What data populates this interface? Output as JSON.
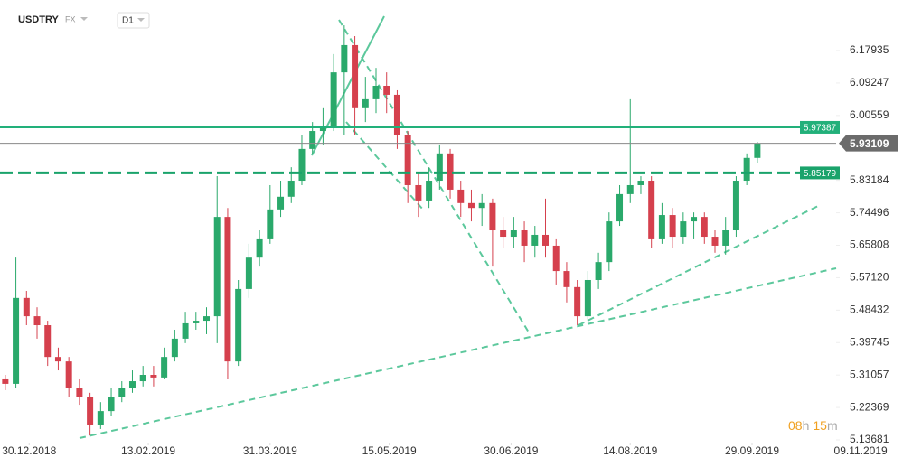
{
  "chart_data": {
    "type": "candlestick",
    "symbol": "USDTRY",
    "market": "FX",
    "timeframe": "D1",
    "up_color": "#2aa96b",
    "down_color": "#d5404d",
    "x": [
      "2018-12-21",
      "2018-12-25",
      "2018-12-29",
      "2019-01-02",
      "2019-01-06",
      "2019-01-10",
      "2019-01-14",
      "2019-01-18",
      "2019-01-22",
      "2019-01-26",
      "2019-01-30",
      "2019-02-03",
      "2019-02-07",
      "2019-02-11",
      "2019-02-15",
      "2019-02-19",
      "2019-02-23",
      "2019-02-27",
      "2019-03-03",
      "2019-03-07",
      "2019-03-11",
      "2019-03-15",
      "2019-03-19",
      "2019-03-23",
      "2019-03-27",
      "2019-03-31",
      "2019-04-04",
      "2019-04-08",
      "2019-04-12",
      "2019-04-16",
      "2019-04-20",
      "2019-04-24",
      "2019-04-28",
      "2019-05-02",
      "2019-05-06",
      "2019-05-10",
      "2019-05-14",
      "2019-05-18",
      "2019-05-22",
      "2019-05-26",
      "2019-05-30",
      "2019-06-03",
      "2019-06-07",
      "2019-06-11",
      "2019-06-15",
      "2019-06-19",
      "2019-06-23",
      "2019-06-27",
      "2019-07-01",
      "2019-07-05",
      "2019-07-09",
      "2019-07-13",
      "2019-07-17",
      "2019-07-21",
      "2019-07-25",
      "2019-07-29",
      "2019-08-02",
      "2019-08-06",
      "2019-08-10",
      "2019-08-14",
      "2019-08-18",
      "2019-08-22",
      "2019-08-26",
      "2019-08-30",
      "2019-09-03",
      "2019-09-07",
      "2019-09-11",
      "2019-09-15",
      "2019-09-19",
      "2019-09-23",
      "2019-09-27",
      "2019-10-01"
    ],
    "open": [
      5.299,
      5.287,
      5.517,
      5.468,
      5.444,
      5.359,
      5.347,
      5.275,
      5.251,
      5.178,
      5.214,
      5.251,
      5.275,
      5.294,
      5.311,
      5.304,
      5.359,
      5.408,
      5.449,
      5.456,
      5.468,
      5.734,
      5.347,
      5.541,
      5.625,
      5.674,
      5.754,
      5.788,
      5.831,
      5.916,
      5.964,
      5.976,
      6.121,
      6.194,
      6.025,
      6.049,
      6.085,
      6.061,
      5.952,
      5.819,
      5.778,
      5.831,
      5.904,
      5.807,
      5.771,
      5.758,
      5.771,
      5.698,
      5.681,
      5.698,
      5.657,
      5.686,
      5.657,
      5.589,
      5.546,
      5.468,
      5.565,
      5.613,
      5.722,
      5.795,
      5.819,
      5.831,
      5.674,
      5.739,
      5.681,
      5.722,
      5.734,
      5.681,
      5.657,
      5.698,
      5.831,
      5.892
    ],
    "high": [
      5.311,
      5.625,
      5.536,
      5.492,
      5.456,
      5.384,
      5.359,
      5.299,
      5.263,
      5.238,
      5.275,
      5.294,
      5.323,
      5.335,
      5.335,
      5.384,
      5.432,
      5.48,
      5.48,
      5.492,
      5.843,
      5.758,
      5.565,
      5.662,
      5.698,
      5.819,
      5.831,
      5.867,
      5.952,
      5.988,
      6.025,
      6.17,
      6.247,
      6.218,
      6.109,
      6.133,
      6.121,
      6.073,
      5.964,
      5.855,
      5.867,
      5.928,
      5.916,
      5.831,
      5.807,
      5.795,
      5.783,
      5.734,
      5.734,
      5.722,
      5.71,
      5.783,
      5.674,
      5.613,
      5.565,
      5.589,
      5.638,
      5.746,
      5.819,
      6.049,
      5.843,
      5.843,
      5.771,
      5.758,
      5.746,
      5.746,
      5.746,
      5.698,
      5.734,
      5.843,
      5.904,
      5.935
    ],
    "low": [
      5.27,
      5.275,
      5.444,
      5.408,
      5.335,
      5.323,
      5.251,
      5.231,
      5.149,
      5.166,
      5.202,
      5.238,
      5.263,
      5.28,
      5.28,
      5.299,
      5.347,
      5.396,
      5.432,
      5.42,
      5.396,
      5.299,
      5.335,
      5.517,
      5.601,
      5.662,
      5.734,
      5.771,
      5.819,
      5.904,
      5.928,
      5.964,
      5.952,
      5.952,
      5.988,
      6.012,
      6.012,
      5.916,
      5.771,
      5.734,
      5.758,
      5.807,
      5.783,
      5.734,
      5.722,
      5.71,
      5.601,
      5.65,
      5.65,
      5.613,
      5.625,
      5.625,
      5.553,
      5.505,
      5.444,
      5.456,
      5.541,
      5.589,
      5.71,
      5.771,
      5.795,
      5.65,
      5.662,
      5.65,
      5.662,
      5.674,
      5.662,
      5.638,
      5.633,
      5.681,
      5.819,
      5.879
    ],
    "close": [
      5.287,
      5.517,
      5.468,
      5.444,
      5.359,
      5.347,
      5.275,
      5.251,
      5.178,
      5.214,
      5.251,
      5.275,
      5.294,
      5.311,
      5.304,
      5.359,
      5.408,
      5.449,
      5.456,
      5.468,
      5.734,
      5.347,
      5.541,
      5.625,
      5.674,
      5.754,
      5.788,
      5.831,
      5.916,
      5.964,
      5.976,
      6.121,
      6.194,
      6.025,
      6.049,
      6.085,
      6.061,
      5.952,
      5.819,
      5.778,
      5.831,
      5.904,
      5.807,
      5.771,
      5.758,
      5.771,
      5.698,
      5.681,
      5.698,
      5.657,
      5.686,
      5.657,
      5.589,
      5.546,
      5.468,
      5.565,
      5.613,
      5.722,
      5.795,
      5.819,
      5.831,
      5.674,
      5.739,
      5.681,
      5.722,
      5.734,
      5.681,
      5.657,
      5.698,
      5.831,
      5.892,
      5.93109
    ],
    "xlim": [
      "2018-12-19",
      "2019-11-25"
    ],
    "xticks": [
      {
        "value": "2018-12-30",
        "label": "30.12.2018"
      },
      {
        "value": "2019-02-13",
        "label": "13.02.2019"
      },
      {
        "value": "2019-03-31",
        "label": "31.03.2019"
      },
      {
        "value": "2019-05-15",
        "label": "15.05.2019"
      },
      {
        "value": "2019-06-30",
        "label": "30.06.2019"
      },
      {
        "value": "2019-08-14",
        "label": "14.08.2019"
      },
      {
        "value": "2019-09-29",
        "label": "29.09.2019"
      },
      {
        "value": "2019-11-09",
        "label": "09.11.2019"
      }
    ],
    "ylim": [
      5.1296,
      6.3148
    ],
    "yticks": [
      6.17935,
      6.09247,
      6.00559,
      5.83184,
      5.74496,
      5.65808,
      {
        "value": 5.5712,
        "label": "5.57120"
      },
      5.48432,
      5.39745,
      5.31057,
      5.22369,
      5.13681
    ],
    "levels": [
      {
        "value": 5.97387,
        "color": "#22b07a",
        "style": "solid"
      },
      {
        "value": 5.85179,
        "color": "#1aa36b",
        "style": "dashed"
      }
    ],
    "last_price": 5.93109,
    "countdown": {
      "hours": "08",
      "hours_unit": "h",
      "minutes": "15",
      "minutes_unit": "m"
    }
  }
}
